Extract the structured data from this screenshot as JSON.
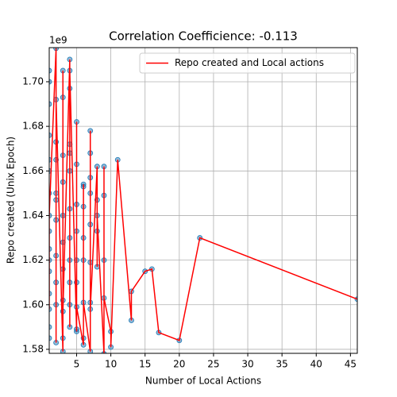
{
  "chart_data": {
    "type": "scatter",
    "title": "Correlation Coefficience: -0.113",
    "x_label": "Number of Local Actions",
    "y_label": "Repo created (Unix Epoch)",
    "y_offset": "1e9",
    "xlim": [
      1,
      46
    ],
    "xticks": [
      5,
      10,
      15,
      20,
      25,
      30,
      35,
      40,
      45
    ],
    "ylim": [
      1.5782,
      1.7153
    ],
    "yticks": [
      1.58,
      {
        "value": 1.6,
        "label": "1.60"
      },
      1.62,
      1.64,
      1.66,
      1.68,
      {
        "value": 1.7,
        "label": "1.70"
      }
    ],
    "grid": true,
    "legend": "upper right",
    "series": [
      {
        "type": "scatter",
        "color": "#1f77b4",
        "x": [
          1,
          1,
          1,
          1,
          1,
          1,
          1,
          1,
          1,
          1,
          1,
          1,
          1,
          1,
          1,
          1,
          2,
          2,
          2,
          2,
          2,
          2,
          2,
          2,
          2,
          2,
          2,
          3,
          3,
          3,
          3,
          3,
          3,
          3,
          3,
          3,
          3,
          3,
          4,
          4,
          4,
          4,
          4,
          4,
          4,
          4,
          4,
          4,
          4,
          4,
          5,
          5,
          5,
          5,
          5,
          5,
          5,
          5,
          5,
          6,
          6,
          6,
          6,
          6,
          6,
          6,
          6,
          7,
          7,
          7,
          7,
          7,
          7,
          7,
          7,
          7,
          8,
          8,
          8,
          8,
          8,
          9,
          9,
          9,
          9,
          9,
          10,
          10,
          11,
          13,
          13,
          15,
          16,
          17,
          20,
          23,
          46
        ],
        "values": [
          1.598,
          1.64,
          1.705,
          1.69,
          1.676,
          1.66,
          1.65,
          1.633,
          1.625,
          1.615,
          1.605,
          1.59,
          1.585,
          1.665,
          1.7,
          1.62,
          1.715,
          1.583,
          1.692,
          1.665,
          1.65,
          1.638,
          1.622,
          1.61,
          1.6,
          1.673,
          1.647,
          1.579,
          1.705,
          1.597,
          1.693,
          1.667,
          1.655,
          1.64,
          1.628,
          1.616,
          1.602,
          1.585,
          1.71,
          1.59,
          1.705,
          1.697,
          1.672,
          1.66,
          1.643,
          1.63,
          1.62,
          1.61,
          1.6,
          1.668,
          1.588,
          1.682,
          1.599,
          1.663,
          1.645,
          1.633,
          1.62,
          1.61,
          1.589,
          1.582,
          1.654,
          1.601,
          1.653,
          1.644,
          1.63,
          1.62,
          1.585,
          1.579,
          1.678,
          1.598,
          1.668,
          1.657,
          1.65,
          1.636,
          1.619,
          1.601,
          1.662,
          1.617,
          1.64,
          1.647,
          1.633,
          1.578,
          1.662,
          1.603,
          1.649,
          1.62,
          1.588,
          1.581,
          1.665,
          1.593,
          1.606,
          1.615,
          1.616,
          1.5875,
          1.584,
          1.63,
          1.6025
        ]
      },
      {
        "type": "line",
        "name": "Repo created and Local actions",
        "color": "#ff0000",
        "x": [
          1,
          1,
          2,
          2,
          2,
          3,
          3,
          3,
          4,
          4,
          4,
          5,
          5,
          5,
          6,
          6,
          6,
          7,
          7,
          7,
          8,
          8,
          8,
          9,
          9,
          9,
          10,
          10,
          11,
          13,
          13,
          15,
          16,
          17,
          20,
          23,
          46
        ],
        "values": [
          1.598,
          1.64,
          1.715,
          1.583,
          1.692,
          1.579,
          1.705,
          1.597,
          1.71,
          1.59,
          1.705,
          1.588,
          1.682,
          1.599,
          1.582,
          1.654,
          1.601,
          1.579,
          1.678,
          1.598,
          1.662,
          1.617,
          1.64,
          1.578,
          1.662,
          1.603,
          1.588,
          1.581,
          1.665,
          1.593,
          1.606,
          1.615,
          1.616,
          1.5875,
          1.584,
          1.63,
          1.6025
        ]
      }
    ]
  }
}
